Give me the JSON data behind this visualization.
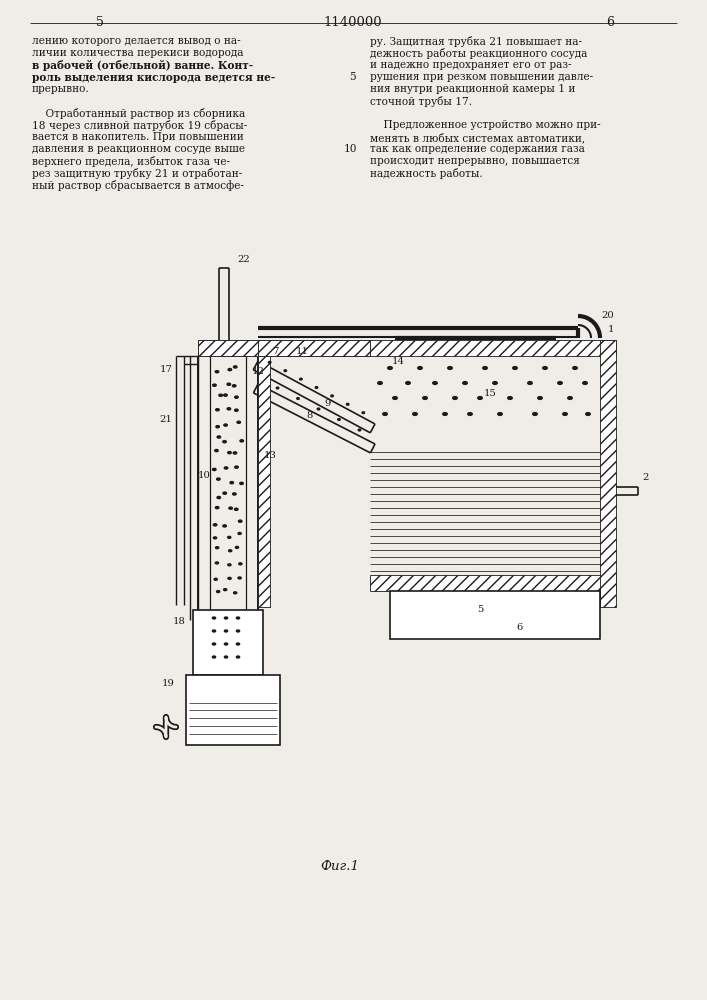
{
  "bg_color": "#f0ede8",
  "line_color": "#1a1a1a",
  "text_color": "#1a1a1a",
  "page_num_left": "5",
  "page_num_right": "6",
  "patent_number": "1140000",
  "figure_label": "Фиг.1",
  "left_col_text": [
    "лению которого делается вывод о на-",
    "личии количества перекиси водорода",
    "в рабочей (отбельной) ванне. Конт-",
    "роль выделения кислорода ведется не-",
    "прерывно.",
    "",
    "    Отработанный раствор из сборника",
    "18 через сливной патрубок 19 сбрасы-",
    "вается в накопитель. При повышении",
    "давления в реакционном сосуде выше",
    "верхнего предела, избыток газа че-",
    "рез защитную трубку 21 и отработан-",
    "ный раствор сбрасывается в атмосфе-"
  ],
  "right_col_text": [
    "ру. Защитная трубка 21 повышает на-",
    "дежность работы реакционного сосуда",
    "и надежно предохраняет его от раз-",
    "рушения при резком повышении давле-",
    "ния внутри реакционной камеры 1 и",
    "сточной трубы 17.",
    "",
    "    Предложенное устройство можно при-",
    "менять в любых системах автоматики,",
    "так как определение содержания газа",
    "происходит непрерывно, повышается",
    "надежность работы."
  ]
}
